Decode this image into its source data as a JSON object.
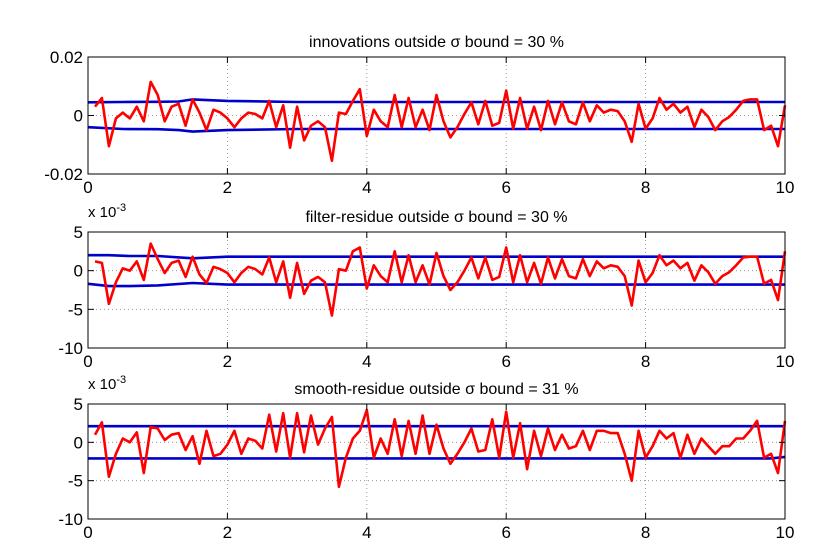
{
  "chart_data": [
    {
      "type": "line",
      "title": "innovations outside σ bound = 30 %",
      "xlim": [
        0,
        10
      ],
      "ylim": [
        -0.02,
        0.02
      ],
      "xticks": [
        0,
        2,
        4,
        6,
        8,
        10
      ],
      "xtick_labels": [
        "0",
        "2",
        "4",
        "6",
        "8",
        "10"
      ],
      "yticks": [
        -0.02,
        0,
        0.02
      ],
      "ytick_labels": [
        "-0.02",
        "0",
        "0.02"
      ],
      "grid": true,
      "multiplier": null,
      "colors": {
        "residual": "#ff0000",
        "bound": "#0000cc"
      },
      "bound": {
        "x": [
          0,
          0.5,
          1.0,
          1.3,
          1.5,
          2.0,
          3.0,
          4.0,
          5.0,
          6.0,
          7.0,
          8.0,
          9.0,
          10.0
        ],
        "upper": [
          0.0045,
          0.0046,
          0.0047,
          0.0048,
          0.0055,
          0.005,
          0.0046,
          0.0046,
          0.0046,
          0.0046,
          0.0046,
          0.0046,
          0.0046,
          0.0046
        ],
        "lower": [
          -0.004,
          -0.0046,
          -0.0047,
          -0.005,
          -0.0055,
          -0.005,
          -0.0046,
          -0.0046,
          -0.0046,
          -0.0046,
          -0.0046,
          -0.0046,
          -0.0046,
          -0.0046
        ]
      },
      "residual": {
        "x": [
          0.1,
          0.2,
          0.3,
          0.4,
          0.5,
          0.6,
          0.7,
          0.8,
          0.9,
          1.0,
          1.1,
          1.2,
          1.3,
          1.4,
          1.5,
          1.6,
          1.7,
          1.8,
          1.9,
          2.0,
          2.1,
          2.2,
          2.3,
          2.4,
          2.5,
          2.6,
          2.7,
          2.8,
          2.9,
          3.0,
          3.1,
          3.2,
          3.3,
          3.4,
          3.5,
          3.6,
          3.7,
          3.8,
          3.9,
          4.0,
          4.1,
          4.2,
          4.3,
          4.4,
          4.5,
          4.6,
          4.7,
          4.8,
          4.9,
          5.0,
          5.1,
          5.2,
          5.3,
          5.4,
          5.5,
          5.6,
          5.7,
          5.8,
          5.9,
          6.0,
          6.1,
          6.2,
          6.3,
          6.4,
          6.5,
          6.6,
          6.7,
          6.8,
          6.9,
          7.0,
          7.1,
          7.2,
          7.3,
          7.4,
          7.5,
          7.6,
          7.7,
          7.8,
          7.9,
          8.0,
          8.1,
          8.2,
          8.3,
          8.4,
          8.5,
          8.6,
          8.7,
          8.8,
          8.9,
          9.0,
          9.1,
          9.2,
          9.3,
          9.4,
          9.5,
          9.6,
          9.7,
          9.8,
          9.9,
          10.0
        ],
        "y": [
          0.003,
          0.006,
          -0.0105,
          -0.001,
          0.001,
          -0.001,
          0.003,
          -0.002,
          0.0115,
          0.007,
          -0.002,
          0.003,
          0.004,
          -0.0035,
          0.0055,
          0.001,
          -0.005,
          0.002,
          0.001,
          -0.001,
          -0.004,
          -0.001,
          0.001,
          0.0005,
          -0.001,
          0.005,
          -0.004,
          0.0035,
          -0.011,
          0.003,
          -0.0085,
          -0.0035,
          -0.002,
          -0.004,
          -0.0155,
          0.001,
          0.0005,
          0.005,
          0.009,
          -0.007,
          0.002,
          -0.002,
          -0.004,
          0.007,
          -0.004,
          0.006,
          -0.004,
          0.002,
          -0.005,
          0.007,
          -0.002,
          -0.0075,
          -0.004,
          0.0005,
          0.0045,
          -0.003,
          0.005,
          -0.0035,
          -0.0025,
          0.0085,
          -0.0045,
          0.006,
          -0.0045,
          0.003,
          -0.005,
          0.005,
          -0.003,
          0.0045,
          -0.002,
          -0.003,
          0.0045,
          -0.002,
          0.0035,
          0.001,
          0.002,
          0.0015,
          -0.002,
          -0.009,
          0.004,
          -0.0045,
          -0.001,
          0.006,
          0.002,
          0.004,
          0.001,
          0.003,
          -0.004,
          0.002,
          -0.0005,
          -0.005,
          -0.002,
          -0.0005,
          0.002,
          0.005,
          0.0055,
          0.0055,
          -0.005,
          -0.0035,
          -0.0105,
          0.0035
        ]
      }
    },
    {
      "type": "line",
      "title": "filter-residue outside σ bound = 30 %",
      "xlim": [
        0,
        10
      ],
      "ylim": [
        -10,
        5
      ],
      "xticks": [
        0,
        2,
        4,
        6,
        8,
        10
      ],
      "xtick_labels": [
        "0",
        "2",
        "4",
        "6",
        "8",
        "10"
      ],
      "yticks": [
        -10,
        -5,
        0,
        5
      ],
      "ytick_labels": [
        "-10",
        "-5",
        "0",
        "5"
      ],
      "grid": true,
      "multiplier": {
        "base": "x 10",
        "exponent": "-3"
      },
      "colors": {
        "residual": "#ff0000",
        "bound": "#0000cc"
      },
      "bound": {
        "x": [
          0,
          0.3,
          0.6,
          1.0,
          1.5,
          2.0,
          3.0,
          4.0,
          5.0,
          6.0,
          7.0,
          8.0,
          9.0,
          10.0
        ],
        "upper": [
          2.0,
          2.0,
          1.9,
          1.9,
          1.6,
          1.8,
          1.8,
          1.8,
          1.8,
          1.8,
          1.8,
          1.8,
          1.8,
          1.8
        ],
        "lower": [
          -1.7,
          -2.0,
          -2.0,
          -1.9,
          -1.6,
          -1.8,
          -1.8,
          -1.8,
          -1.8,
          -1.8,
          -1.8,
          -1.8,
          -1.8,
          -1.8
        ]
      },
      "residual": {
        "x": [
          0.1,
          0.2,
          0.3,
          0.4,
          0.5,
          0.6,
          0.7,
          0.8,
          0.9,
          1.0,
          1.1,
          1.2,
          1.3,
          1.4,
          1.5,
          1.6,
          1.7,
          1.8,
          1.9,
          2.0,
          2.1,
          2.2,
          2.3,
          2.4,
          2.5,
          2.6,
          2.7,
          2.8,
          2.9,
          3.0,
          3.1,
          3.2,
          3.3,
          3.4,
          3.5,
          3.6,
          3.7,
          3.8,
          3.9,
          4.0,
          4.1,
          4.2,
          4.3,
          4.4,
          4.5,
          4.6,
          4.7,
          4.8,
          4.9,
          5.0,
          5.1,
          5.2,
          5.3,
          5.4,
          5.5,
          5.6,
          5.7,
          5.8,
          5.9,
          6.0,
          6.1,
          6.2,
          6.3,
          6.4,
          6.5,
          6.6,
          6.7,
          6.8,
          6.9,
          7.0,
          7.1,
          7.2,
          7.3,
          7.4,
          7.5,
          7.6,
          7.7,
          7.8,
          7.9,
          8.0,
          8.1,
          8.2,
          8.3,
          8.4,
          8.5,
          8.6,
          8.7,
          8.8,
          8.9,
          9.0,
          9.1,
          9.2,
          9.3,
          9.4,
          9.5,
          9.6,
          9.7,
          9.8,
          9.9,
          10.0
        ],
        "y": [
          1.2,
          1.0,
          -4.3,
          -1.5,
          0.3,
          0.0,
          1.2,
          -1.2,
          3.5,
          1.5,
          -0.3,
          1.0,
          1.3,
          -0.8,
          1.8,
          -0.5,
          -1.6,
          0.5,
          0.2,
          -0.3,
          -1.5,
          -0.3,
          0.5,
          0.2,
          -0.5,
          1.7,
          -1.5,
          1.2,
          -3.5,
          1.0,
          -3.0,
          -1.3,
          -0.8,
          -1.5,
          -5.8,
          0.2,
          0.0,
          2.5,
          3.0,
          -2.3,
          0.7,
          -0.7,
          -1.5,
          2.5,
          -1.5,
          2.0,
          -1.5,
          0.7,
          -1.8,
          2.3,
          -0.7,
          -2.5,
          -1.5,
          0.0,
          1.7,
          -1.0,
          1.7,
          -1.2,
          -0.8,
          3.0,
          -1.5,
          2.0,
          -1.5,
          1.0,
          -1.7,
          1.7,
          -1.0,
          1.5,
          -0.7,
          -1.0,
          1.5,
          -0.7,
          1.2,
          0.3,
          0.7,
          0.5,
          -0.7,
          -4.5,
          1.3,
          -1.5,
          -0.3,
          2.0,
          0.7,
          1.3,
          0.3,
          1.0,
          -1.3,
          0.7,
          -0.2,
          -1.7,
          -0.7,
          -0.2,
          0.7,
          1.7,
          1.8,
          1.8,
          -1.7,
          -1.2,
          -3.8,
          2.5
        ]
      }
    },
    {
      "type": "line",
      "title": "smooth-residue outside σ bound = 31 %",
      "xlim": [
        0,
        10
      ],
      "ylim": [
        -10,
        5
      ],
      "xticks": [
        0,
        2,
        4,
        6,
        8,
        10
      ],
      "xtick_labels": [
        "0",
        "2",
        "4",
        "6",
        "8",
        "10"
      ],
      "yticks": [
        -10,
        -5,
        0,
        5
      ],
      "ytick_labels": [
        "-10",
        "-5",
        "0",
        "5"
      ],
      "grid": true,
      "multiplier": {
        "base": "x 10",
        "exponent": "-3"
      },
      "colors": {
        "residual": "#ff0000",
        "bound": "#0000cc"
      },
      "bound": {
        "x": [
          0,
          1.0,
          2.0,
          3.0,
          4.0,
          5.0,
          6.0,
          7.0,
          8.0,
          9.0,
          9.8,
          10.0
        ],
        "upper": [
          2.1,
          2.1,
          2.1,
          2.1,
          2.1,
          2.1,
          2.1,
          2.1,
          2.1,
          2.1,
          2.1,
          2.1
        ],
        "lower": [
          -2.1,
          -2.1,
          -2.1,
          -2.1,
          -2.1,
          -2.1,
          -2.1,
          -2.1,
          -2.1,
          -2.1,
          -2.1,
          -1.9
        ]
      },
      "residual": {
        "x": [
          0.1,
          0.2,
          0.3,
          0.4,
          0.5,
          0.6,
          0.7,
          0.8,
          0.9,
          1.0,
          1.1,
          1.2,
          1.3,
          1.4,
          1.5,
          1.6,
          1.7,
          1.8,
          1.9,
          2.0,
          2.1,
          2.2,
          2.3,
          2.4,
          2.5,
          2.6,
          2.7,
          2.8,
          2.9,
          3.0,
          3.1,
          3.2,
          3.3,
          3.4,
          3.5,
          3.6,
          3.7,
          3.8,
          3.9,
          4.0,
          4.1,
          4.2,
          4.3,
          4.4,
          4.5,
          4.6,
          4.7,
          4.8,
          4.9,
          5.0,
          5.1,
          5.2,
          5.3,
          5.4,
          5.5,
          5.6,
          5.7,
          5.8,
          5.9,
          6.0,
          6.1,
          6.2,
          6.3,
          6.4,
          6.5,
          6.6,
          6.7,
          6.8,
          6.9,
          7.0,
          7.1,
          7.2,
          7.3,
          7.4,
          7.5,
          7.6,
          7.7,
          7.8,
          7.9,
          8.0,
          8.1,
          8.2,
          8.3,
          8.4,
          8.5,
          8.6,
          8.7,
          8.8,
          8.9,
          9.0,
          9.1,
          9.2,
          9.3,
          9.4,
          9.5,
          9.6,
          9.7,
          9.8,
          9.9,
          10.0
        ],
        "y": [
          1.0,
          2.6,
          -4.5,
          -1.5,
          0.5,
          0.0,
          1.3,
          -4.0,
          2.0,
          1.8,
          0.3,
          1.0,
          1.2,
          -1.0,
          0.8,
          -2.8,
          1.5,
          -1.8,
          -1.5,
          -0.3,
          1.5,
          -1.5,
          0.5,
          0.2,
          -0.8,
          3.6,
          -1.2,
          3.8,
          -2.0,
          3.8,
          -1.3,
          3.5,
          -0.3,
          1.8,
          3.3,
          -5.8,
          -2.0,
          0.5,
          1.5,
          4.2,
          -2.0,
          0.5,
          -1.5,
          3.0,
          -1.8,
          2.8,
          -1.5,
          3.5,
          -1.5,
          2.3,
          -0.8,
          -2.8,
          -1.5,
          0.0,
          1.8,
          -1.2,
          -1.0,
          3.0,
          -2.0,
          4.0,
          -2.0,
          2.5,
          -3.5,
          1.5,
          -1.8,
          1.8,
          -1.0,
          1.0,
          -0.8,
          -0.5,
          1.5,
          -1.0,
          1.5,
          1.5,
          1.2,
          1.2,
          -1.5,
          -5.0,
          1.5,
          -2.0,
          -0.5,
          1.5,
          0.5,
          1.2,
          -2.0,
          1.0,
          -1.5,
          0.5,
          -0.5,
          -1.5,
          -0.5,
          -0.5,
          0.5,
          0.5,
          1.5,
          2.8,
          -2.0,
          -1.5,
          -4.0,
          2.8
        ]
      }
    }
  ]
}
